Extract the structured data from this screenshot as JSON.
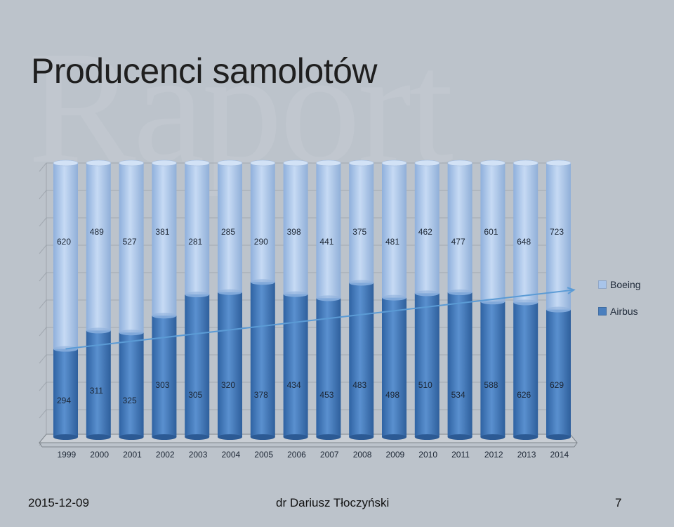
{
  "slide": {
    "title": "Producenci samolotów",
    "footer_date": "2015-12-09",
    "footer_author": "dr Dariusz Tłoczyński",
    "page_number": "7"
  },
  "colors": {
    "boeing": "#a8c4ea",
    "airbus": "#4a7fbe",
    "background": "#bcc3cb",
    "trend": "#5b9bd5"
  },
  "chart_data": {
    "type": "bar",
    "stacked": true,
    "categories": [
      "1999",
      "2000",
      "2001",
      "2002",
      "2003",
      "2004",
      "2005",
      "2006",
      "2007",
      "2008",
      "2009",
      "2010",
      "2011",
      "2012",
      "2013",
      "2014"
    ],
    "series": [
      {
        "name": "Airbus",
        "values": [
          294,
          311,
          325,
          303,
          305,
          320,
          378,
          434,
          453,
          483,
          498,
          510,
          534,
          588,
          626,
          629
        ]
      },
      {
        "name": "Boeing",
        "values": [
          620,
          489,
          527,
          381,
          281,
          285,
          290,
          398,
          441,
          375,
          481,
          462,
          477,
          601,
          648,
          723
        ]
      }
    ],
    "legend": [
      "Boeing",
      "Airbus"
    ],
    "legend_position": "right",
    "normalized_100_percent": true,
    "trend_arrow": "Airbus share rising 1999-2014",
    "grid": true
  }
}
